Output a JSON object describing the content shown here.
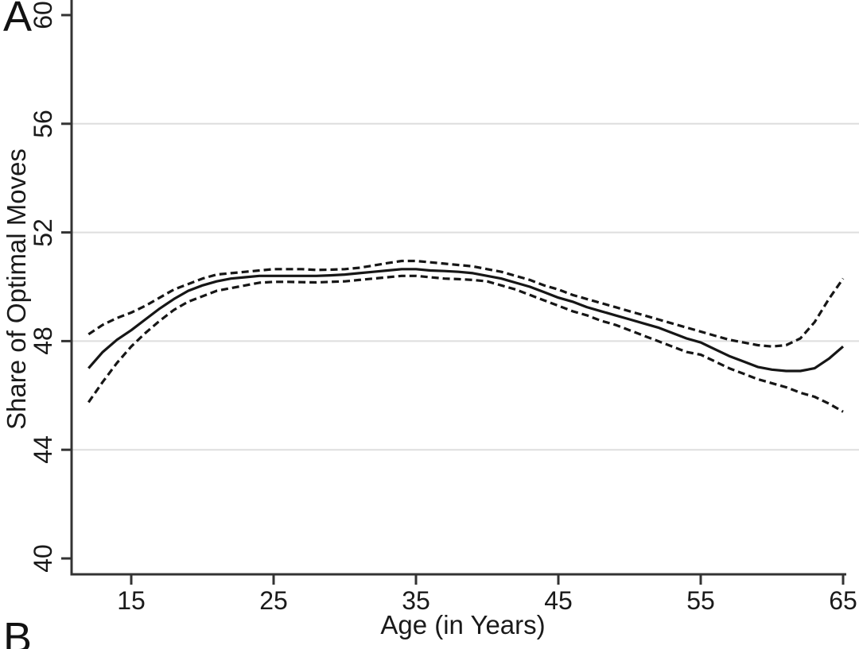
{
  "panel": {
    "label_a": "A",
    "label_b": "B"
  },
  "chart_data": {
    "type": "line",
    "title": "",
    "xlabel": "Age (in Years)",
    "ylabel": "Share of Optimal Moves",
    "xlim": [
      10.8,
      65.2
    ],
    "ylim": [
      39.4,
      60.4
    ],
    "x_ticks": [
      15,
      25,
      35,
      45,
      55,
      65
    ],
    "y_ticks": [
      40,
      44,
      48,
      52,
      56,
      60
    ],
    "grid_values": [
      44,
      48,
      52,
      56
    ],
    "legend": "none",
    "colors": {
      "line": "#161616",
      "grid": "#dedede",
      "axis": "#333333",
      "background": "#ffffff"
    },
    "x": [
      12,
      13,
      14,
      15,
      16,
      17,
      18,
      19,
      20,
      21,
      22,
      23,
      24,
      25,
      26,
      27,
      28,
      29,
      30,
      31,
      32,
      33,
      34,
      35,
      36,
      37,
      38,
      39,
      40,
      41,
      42,
      43,
      44,
      45,
      46,
      47,
      48,
      49,
      50,
      51,
      52,
      53,
      54,
      55,
      56,
      57,
      58,
      59,
      60,
      61,
      62,
      63,
      64,
      65
    ],
    "series": [
      {
        "name": "estimate",
        "style": "solid",
        "values": [
          47.0,
          47.6,
          48.05,
          48.4,
          48.8,
          49.2,
          49.55,
          49.85,
          50.05,
          50.2,
          50.3,
          50.35,
          50.4,
          50.4,
          50.4,
          50.4,
          50.4,
          50.42,
          50.45,
          50.5,
          50.55,
          50.6,
          50.65,
          50.65,
          50.6,
          50.58,
          50.55,
          50.5,
          50.4,
          50.3,
          50.15,
          50.0,
          49.8,
          49.6,
          49.45,
          49.25,
          49.1,
          48.95,
          48.8,
          48.65,
          48.5,
          48.3,
          48.1,
          47.95,
          47.7,
          47.45,
          47.25,
          47.05,
          46.95,
          46.9,
          46.9,
          47.0,
          47.35,
          47.8
        ]
      },
      {
        "name": "upper-ci",
        "style": "dashed",
        "values": [
          48.25,
          48.6,
          48.85,
          49.05,
          49.3,
          49.6,
          49.9,
          50.1,
          50.3,
          50.45,
          50.5,
          50.55,
          50.6,
          50.65,
          50.65,
          50.65,
          50.62,
          50.63,
          50.65,
          50.7,
          50.78,
          50.87,
          50.95,
          50.95,
          50.9,
          50.85,
          50.8,
          50.75,
          50.65,
          50.55,
          50.4,
          50.25,
          50.05,
          49.9,
          49.7,
          49.55,
          49.4,
          49.25,
          49.1,
          48.95,
          48.8,
          48.65,
          48.5,
          48.35,
          48.2,
          48.05,
          47.95,
          47.85,
          47.8,
          47.85,
          48.1,
          48.7,
          49.55,
          50.3
        ]
      },
      {
        "name": "lower-ci",
        "style": "dashed",
        "values": [
          45.75,
          46.5,
          47.2,
          47.8,
          48.3,
          48.75,
          49.15,
          49.45,
          49.65,
          49.85,
          49.95,
          50.05,
          50.15,
          50.18,
          50.18,
          50.17,
          50.16,
          50.18,
          50.2,
          50.25,
          50.3,
          50.35,
          50.4,
          50.4,
          50.35,
          50.3,
          50.28,
          50.25,
          50.2,
          50.05,
          49.9,
          49.7,
          49.5,
          49.3,
          49.1,
          48.95,
          48.75,
          48.6,
          48.4,
          48.2,
          48.0,
          47.8,
          47.6,
          47.5,
          47.25,
          47.0,
          46.8,
          46.6,
          46.45,
          46.3,
          46.1,
          45.95,
          45.7,
          45.4
        ]
      }
    ]
  }
}
